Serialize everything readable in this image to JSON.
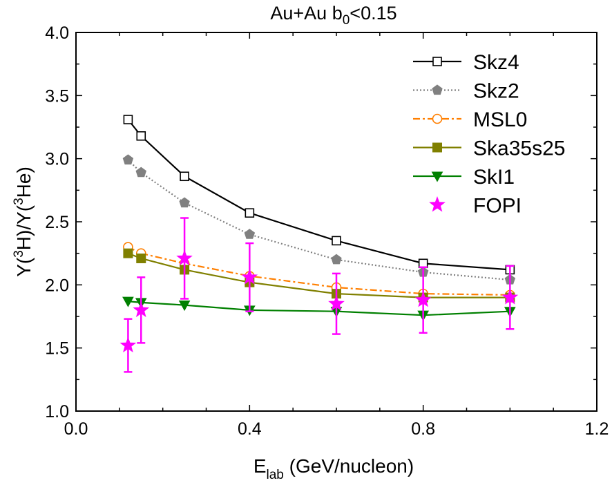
{
  "chart_data": {
    "type": "line",
    "title": {
      "main": "Au+Au  b",
      "sub": "0",
      "rest": "<0.15"
    },
    "xlabel": {
      "main": "E",
      "sub": "lab",
      "rest": " (GeV/nucleon)"
    },
    "ylabel": {
      "p1": "Y(",
      "sup1": "3",
      "p2": "H)/Y(",
      "sup2": "3",
      "p3": "He)"
    },
    "xlim": [
      0.0,
      1.2
    ],
    "ylim": [
      1.0,
      4.0
    ],
    "xticks": [
      0.0,
      0.4,
      0.8,
      1.2
    ],
    "xtick_labels": [
      "0.0",
      "0.4",
      "0.8",
      "1.2"
    ],
    "yticks": [
      1.0,
      1.5,
      2.0,
      2.5,
      3.0,
      3.5,
      4.0
    ],
    "ytick_labels": [
      "1.0",
      "1.5",
      "2.0",
      "2.5",
      "3.0",
      "3.5",
      "4.0"
    ],
    "grid": false,
    "legend_position": "top-right",
    "series": [
      {
        "name": "Skz4",
        "color": "#000000",
        "line": "solid",
        "marker": "open-square",
        "x": [
          0.12,
          0.15,
          0.25,
          0.4,
          0.6,
          0.8,
          1.0
        ],
        "y": [
          3.31,
          3.18,
          2.86,
          2.57,
          2.35,
          2.17,
          2.12
        ]
      },
      {
        "name": "Skz2",
        "color": "#808080",
        "line": "dotted",
        "marker": "filled-pentagon",
        "x": [
          0.12,
          0.15,
          0.25,
          0.4,
          0.6,
          0.8,
          1.0
        ],
        "y": [
          2.99,
          2.89,
          2.65,
          2.4,
          2.2,
          2.1,
          2.04
        ]
      },
      {
        "name": "MSL0",
        "color": "#ff7f00",
        "line": "dashdot",
        "marker": "open-circle",
        "x": [
          0.12,
          0.15,
          0.25,
          0.4,
          0.6,
          0.8,
          1.0
        ],
        "y": [
          2.3,
          2.25,
          2.17,
          2.07,
          1.98,
          1.93,
          1.92
        ]
      },
      {
        "name": "Ska35s25",
        "color": "#808000",
        "line": "solid",
        "marker": "filled-square",
        "x": [
          0.12,
          0.15,
          0.25,
          0.4,
          0.6,
          0.8,
          1.0
        ],
        "y": [
          2.25,
          2.21,
          2.12,
          2.02,
          1.93,
          1.9,
          1.9
        ]
      },
      {
        "name": "SkI1",
        "color": "#008000",
        "line": "solid",
        "marker": "filled-triangle-down",
        "x": [
          0.12,
          0.15,
          0.25,
          0.4,
          0.6,
          0.8,
          1.0
        ],
        "y": [
          1.87,
          1.86,
          1.84,
          1.8,
          1.79,
          1.76,
          1.79
        ]
      },
      {
        "name": "FOPI",
        "color": "#ff00ff",
        "line": "none",
        "marker": "filled-star",
        "x": [
          0.12,
          0.15,
          0.25,
          0.4,
          0.6,
          0.8,
          1.0
        ],
        "y": [
          1.52,
          1.8,
          2.21,
          2.06,
          1.85,
          1.88,
          1.9
        ],
        "yerr": [
          0.21,
          0.26,
          0.32,
          0.27,
          0.24,
          0.26,
          0.25
        ]
      }
    ]
  }
}
